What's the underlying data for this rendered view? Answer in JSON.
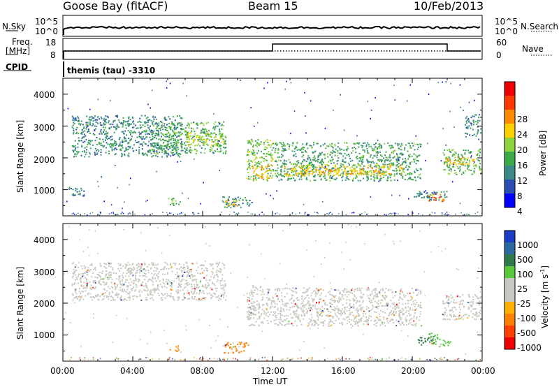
{
  "header": {
    "station": "Goose Bay (fitACF)",
    "beam": "Beam 15",
    "date": "10/Feb/2013"
  },
  "top_panels": {
    "nsky_label": "N.Sky",
    "nsky_ticks": [
      "10^5",
      "10^0"
    ],
    "nsearch_label": "N.Search",
    "nsearch_ticks": [
      "10^5",
      "10^0"
    ],
    "freq_label": "Freq.",
    "freq_unit": "[MHz]",
    "freq_ticks": [
      "18",
      "8"
    ],
    "nave_label": "Nave",
    "nave_ticks": [
      "60",
      "0"
    ],
    "cpid_label": "CPID",
    "cpid_value": "themis (tau) -3310"
  },
  "colors": {
    "power_scale": [
      "#0000ff",
      "#2b4fb0",
      "#3d8a86",
      "#3daa4a",
      "#8fd43a",
      "#ffd000",
      "#ff8a00",
      "#ff3a00",
      "#ee0000"
    ],
    "velocity_scale": [
      "#1c3cc8",
      "#2a6aa0",
      "#2f7a4c",
      "#59c83a",
      "#c8c8c0",
      "#c8c8c0",
      "#ffb000",
      "#ff8000",
      "#ff4000",
      "#ee0000"
    ],
    "scatter_gray": "#c8c8c0"
  },
  "chart_data": [
    {
      "type": "heatmap",
      "panel": "power",
      "xlabel": "Time UT",
      "ylabel": "Slant Range [km]",
      "y_ticks": [
        "1000",
        "2000",
        "3000",
        "4000"
      ],
      "ylim": [
        180,
        4500
      ],
      "colorbar_label": "Power [dB]",
      "colorbar_ticks": [
        "4",
        "8",
        "12",
        "16",
        "20",
        "24",
        "28"
      ],
      "colorbar_range": [
        0,
        30
      ],
      "regions": [
        {
          "t0": 0.5,
          "t1": 6.8,
          "r0": 2050,
          "r1": 3350,
          "value": 8
        },
        {
          "t0": 5.0,
          "t1": 9.3,
          "r0": 2150,
          "r1": 3150,
          "value": 12
        },
        {
          "t0": 7.0,
          "t1": 9.2,
          "r0": 2400,
          "r1": 2800,
          "value": 16
        },
        {
          "t0": 10.5,
          "t1": 12.0,
          "r0": 1300,
          "r1": 2600,
          "value": 14
        },
        {
          "t0": 10.8,
          "t1": 11.9,
          "r0": 1350,
          "r1": 1800,
          "value": 20
        },
        {
          "t0": 12.0,
          "t1": 20.5,
          "r0": 1300,
          "r1": 2500,
          "value": 10
        },
        {
          "t0": 12.5,
          "t1": 19.5,
          "r0": 1450,
          "r1": 1800,
          "value": 18
        },
        {
          "t0": 13.5,
          "t1": 18.5,
          "r0": 1500,
          "r1": 1650,
          "value": 20
        },
        {
          "t0": 21.7,
          "t1": 23.9,
          "r0": 1500,
          "r1": 2300,
          "value": 12
        },
        {
          "t0": 21.9,
          "t1": 23.5,
          "r0": 1800,
          "r1": 2050,
          "value": 20
        },
        {
          "t0": 9.1,
          "t1": 10.8,
          "r0": 450,
          "r1": 800,
          "value": 8
        },
        {
          "t0": 9.2,
          "t1": 10.0,
          "r0": 500,
          "r1": 700,
          "value": 20
        },
        {
          "t0": 20.0,
          "t1": 22.0,
          "r0": 700,
          "r1": 1000,
          "value": 8
        },
        {
          "t0": 20.8,
          "t1": 21.8,
          "r0": 650,
          "r1": 900,
          "value": 24
        },
        {
          "t0": 6.0,
          "t1": 6.7,
          "r0": 500,
          "r1": 750,
          "value": 12
        },
        {
          "t0": 0.2,
          "t1": 1.2,
          "r0": 800,
          "r1": 1100,
          "value": 6
        },
        {
          "t0": 23.0,
          "t1": 23.9,
          "r0": 2700,
          "r1": 3400,
          "value": 8
        }
      ]
    },
    {
      "type": "heatmap",
      "panel": "velocity",
      "xlabel": "Time UT",
      "ylabel": "Slant Range [km]",
      "x_ticks": [
        "00:00",
        "04:00",
        "08:00",
        "12:00",
        "16:00",
        "20:00",
        "00:00"
      ],
      "xlim": [
        0,
        24
      ],
      "y_ticks": [
        "1000",
        "2000",
        "3000",
        "4000"
      ],
      "ylim": [
        180,
        4500
      ],
      "colorbar_label": "Velocity [m s",
      "colorbar_unit_sup": "-1",
      "colorbar_ticks": [
        "1000",
        "500",
        "100",
        "25",
        "-25",
        "-100",
        "-500",
        "-1000"
      ],
      "regions": [
        {
          "t0": 0.5,
          "t1": 9.3,
          "r0": 2100,
          "r1": 3300,
          "value": 0
        },
        {
          "t0": 10.5,
          "t1": 12.0,
          "r0": 1300,
          "r1": 2600,
          "value": 0
        },
        {
          "t0": 12.0,
          "t1": 20.5,
          "r0": 1300,
          "r1": 2500,
          "value": 0
        },
        {
          "t0": 21.7,
          "t1": 23.9,
          "r0": 1500,
          "r1": 2300,
          "value": 0
        },
        {
          "t0": 9.1,
          "t1": 10.6,
          "r0": 450,
          "r1": 800,
          "value": -300
        },
        {
          "t0": 6.1,
          "t1": 6.6,
          "r0": 500,
          "r1": 700,
          "value": -200
        },
        {
          "t0": 20.3,
          "t1": 21.2,
          "r0": 700,
          "r1": 1000,
          "value": 150
        },
        {
          "t0": 20.9,
          "t1": 21.5,
          "r0": 650,
          "r1": 1100,
          "value": 80
        },
        {
          "t0": 21.5,
          "t1": 22.2,
          "r0": 650,
          "r1": 900,
          "value": 60
        }
      ]
    }
  ]
}
